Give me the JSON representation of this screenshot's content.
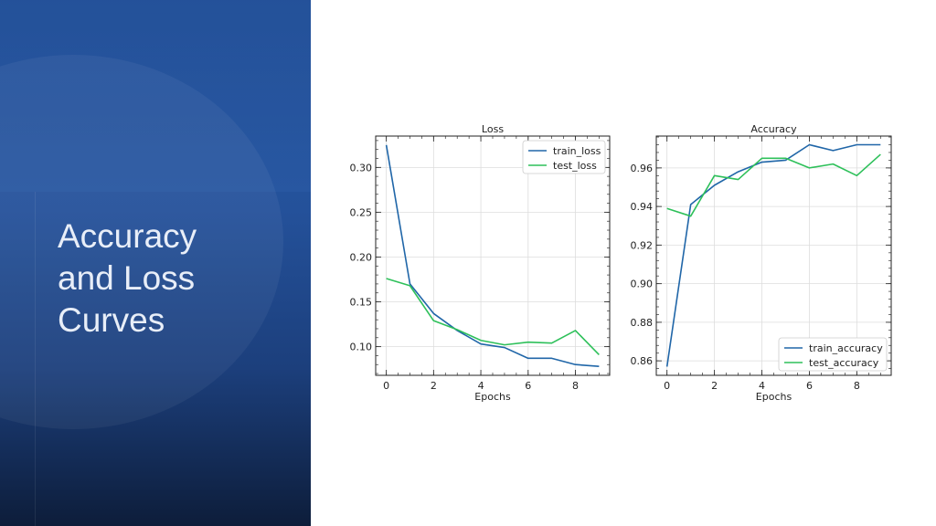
{
  "slide": {
    "title_lines": [
      "Accuracy",
      "and Loss",
      "Curves"
    ]
  },
  "colors": {
    "train": "#2066a8",
    "test": "#2ec05a",
    "panel_top": "#2a5aa6",
    "panel_bottom": "#0d1d3a"
  },
  "chart_data": [
    {
      "type": "line",
      "title": "Loss",
      "xlabel": "Epochs",
      "ylabel": "",
      "x": [
        0,
        1,
        2,
        3,
        4,
        5,
        6,
        7,
        8,
        9
      ],
      "xlim": [
        -0.45,
        9.45
      ],
      "ylim": [
        0.068,
        0.335
      ],
      "xticks": [
        0,
        2,
        4,
        6,
        8
      ],
      "yticks": [
        0.1,
        0.15,
        0.2,
        0.25,
        0.3
      ],
      "ytick_labels": [
        "0.10",
        "0.15",
        "0.20",
        "0.25",
        "0.30"
      ],
      "grid": true,
      "legend_position": "top-right",
      "series": [
        {
          "name": "train_loss",
          "color": "#2066a8",
          "values": [
            0.325,
            0.17,
            0.137,
            0.118,
            0.103,
            0.099,
            0.087,
            0.087,
            0.08,
            0.078
          ]
        },
        {
          "name": "test_loss",
          "color": "#2ec05a",
          "values": [
            0.176,
            0.168,
            0.129,
            0.119,
            0.107,
            0.102,
            0.105,
            0.104,
            0.118,
            0.091
          ]
        }
      ]
    },
    {
      "type": "line",
      "title": "Accuracy",
      "xlabel": "Epochs",
      "ylabel": "",
      "x": [
        0,
        1,
        2,
        3,
        4,
        5,
        6,
        7,
        8,
        9
      ],
      "xlim": [
        -0.45,
        9.45
      ],
      "ylim": [
        0.8525,
        0.9765
      ],
      "xticks": [
        0,
        2,
        4,
        6,
        8
      ],
      "yticks": [
        0.86,
        0.88,
        0.9,
        0.92,
        0.94,
        0.96
      ],
      "ytick_labels": [
        "0.86",
        "0.88",
        "0.90",
        "0.92",
        "0.94",
        "0.96"
      ],
      "grid": true,
      "legend_position": "bottom-right",
      "series": [
        {
          "name": "train_accuracy",
          "color": "#2066a8",
          "values": [
            0.857,
            0.941,
            0.951,
            0.958,
            0.963,
            0.964,
            0.972,
            0.969,
            0.972,
            0.972
          ]
        },
        {
          "name": "test_accuracy",
          "color": "#2ec05a",
          "values": [
            0.939,
            0.935,
            0.956,
            0.954,
            0.965,
            0.965,
            0.96,
            0.962,
            0.956,
            0.967
          ]
        }
      ]
    }
  ]
}
